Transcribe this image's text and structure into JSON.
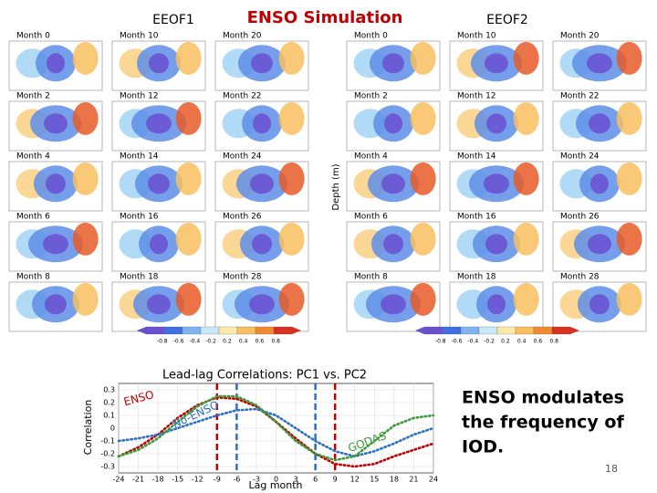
{
  "slide": {
    "left_title": "EEOF1",
    "center_title": "ENSO Simulation",
    "right_title": "EEOF2",
    "depth_label": "Depth (m)",
    "left_panels": [
      [
        "Month 0",
        "Month 10",
        "Month 20"
      ],
      [
        "Month 2",
        "Month 12",
        "Month 22"
      ],
      [
        "Month 4",
        "Month 14",
        "Month 24"
      ],
      [
        "Month 6",
        "Month 16",
        "Month 26"
      ],
      [
        "Month 8",
        "Month 18",
        "Month 28"
      ]
    ],
    "right_panels": [
      [
        "Month 0",
        "Month 10",
        "Month 20"
      ],
      [
        "Month 2",
        "Month 12",
        "Month 22"
      ],
      [
        "Month 4",
        "Month 14",
        "Month 24"
      ],
      [
        "Month 6",
        "Month 16",
        "Month 26"
      ],
      [
        "Month 8",
        "Month 18",
        "Month 28"
      ]
    ],
    "colorbar_labels": [
      -0.8,
      -0.6,
      -0.4,
      -0.2,
      0.2,
      0.4,
      0.6,
      0.8
    ],
    "colorbar_colors": [
      "#6a4fd0",
      "#3f6fe0",
      "#7fb3f0",
      "#c8e8f8",
      "#fde9a8",
      "#f8c060",
      "#f08a30",
      "#d83020"
    ],
    "side_text": [
      "ENSO modulates",
      "the frequency of",
      "IOD."
    ],
    "page_number": "18"
  },
  "chart_data": {
    "type": "line",
    "title": "Lead-lag Correlations: PC1 vs. PC2",
    "x_label": "Lag month",
    "y_label": "Correlation",
    "x": [
      -24,
      -21,
      -18,
      -15,
      -12,
      -9,
      -6,
      -3,
      0,
      3,
      6,
      9,
      12,
      15,
      18,
      21,
      24
    ],
    "series": [
      {
        "name": "ENSO",
        "color": "#c00000",
        "values": [
          -0.22,
          -0.15,
          -0.05,
          0.08,
          0.18,
          0.24,
          0.23,
          0.17,
          0.05,
          -0.08,
          -0.2,
          -0.28,
          -0.3,
          -0.28,
          -0.22,
          -0.17,
          -0.12
        ]
      },
      {
        "name": "No-ENSO",
        "color": "#2e6fc0",
        "values": [
          -0.1,
          -0.08,
          -0.05,
          0,
          0.05,
          0.1,
          0.14,
          0.15,
          0.1,
          0,
          -0.1,
          -0.18,
          -0.22,
          -0.18,
          -0.12,
          -0.05,
          0
        ]
      },
      {
        "name": "GODAS",
        "color": "#3a9a3a",
        "values": [
          -0.22,
          -0.17,
          -0.08,
          0.05,
          0.17,
          0.25,
          0.25,
          0.18,
          0.05,
          -0.1,
          -0.2,
          -0.25,
          -0.22,
          -0.1,
          0.02,
          0.08,
          0.1
        ]
      }
    ],
    "vlines": [
      {
        "x": -9,
        "color": "#c00000"
      },
      {
        "x": -6,
        "color": "#2e6fc0"
      },
      {
        "x": 6,
        "color": "#2e6fc0"
      },
      {
        "x": 9,
        "color": "#c00000"
      }
    ],
    "xlim": [
      -24,
      24
    ],
    "ylim": [
      -0.35,
      0.35
    ],
    "xticks": [
      -24,
      -21,
      -18,
      -15,
      -12,
      -9,
      -6,
      -3,
      0,
      3,
      6,
      9,
      12,
      15,
      18,
      21,
      24
    ],
    "yticks": [
      -0.3,
      -0.2,
      -0.1,
      0,
      0.1,
      0.2,
      0.3
    ],
    "grid": true
  }
}
